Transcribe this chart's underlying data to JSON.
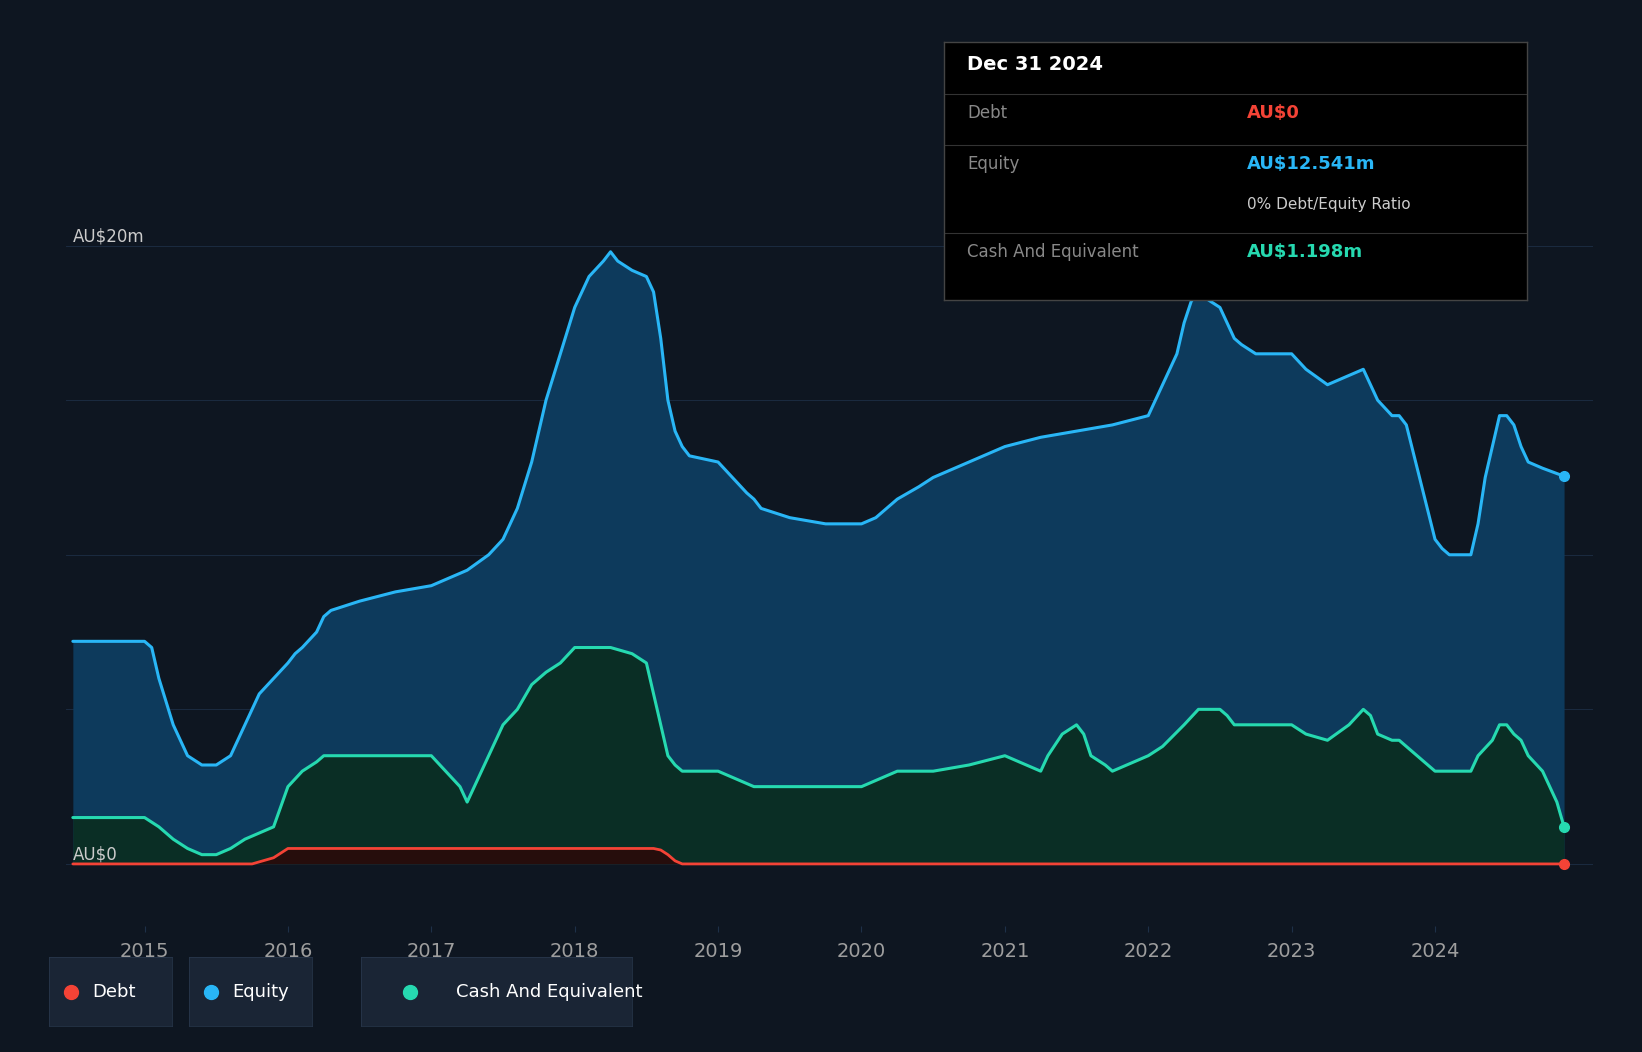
{
  "bg_color": "#0e1621",
  "chart_bg": "#0e1621",
  "plot_bg": "#111d2e",
  "ylabel_top": "AU$20m",
  "ylabel_bottom": "AU$0",
  "equity_color": "#29b6f6",
  "equity_fill": "#0d3a5c",
  "debt_color": "#f44336",
  "debt_fill": "#2a0a0a",
  "cash_color": "#26d9b0",
  "cash_fill": "#0a2e25",
  "grid_color": "#1e3048",
  "tick_color": "#9e9e9e",
  "tooltip_bg": "#000000",
  "tooltip_border": "#444444",
  "equity_data": [
    [
      2014.5,
      7.2
    ],
    [
      2014.8,
      7.2
    ],
    [
      2014.9,
      7.2
    ],
    [
      2015.0,
      7.2
    ],
    [
      2015.05,
      7.0
    ],
    [
      2015.1,
      6.0
    ],
    [
      2015.2,
      4.5
    ],
    [
      2015.3,
      3.5
    ],
    [
      2015.4,
      3.2
    ],
    [
      2015.5,
      3.2
    ],
    [
      2015.6,
      3.5
    ],
    [
      2015.7,
      4.5
    ],
    [
      2015.8,
      5.5
    ],
    [
      2015.9,
      6.0
    ],
    [
      2016.0,
      6.5
    ],
    [
      2016.05,
      6.8
    ],
    [
      2016.1,
      7.0
    ],
    [
      2016.2,
      7.5
    ],
    [
      2016.25,
      8.0
    ],
    [
      2016.3,
      8.2
    ],
    [
      2016.5,
      8.5
    ],
    [
      2016.75,
      8.8
    ],
    [
      2017.0,
      9.0
    ],
    [
      2017.25,
      9.5
    ],
    [
      2017.4,
      10.0
    ],
    [
      2017.5,
      10.5
    ],
    [
      2017.6,
      11.5
    ],
    [
      2017.7,
      13.0
    ],
    [
      2017.8,
      15.0
    ],
    [
      2017.9,
      16.5
    ],
    [
      2018.0,
      18.0
    ],
    [
      2018.1,
      19.0
    ],
    [
      2018.2,
      19.5
    ],
    [
      2018.25,
      19.8
    ],
    [
      2018.3,
      19.5
    ],
    [
      2018.4,
      19.2
    ],
    [
      2018.5,
      19.0
    ],
    [
      2018.55,
      18.5
    ],
    [
      2018.6,
      17.0
    ],
    [
      2018.65,
      15.0
    ],
    [
      2018.7,
      14.0
    ],
    [
      2018.75,
      13.5
    ],
    [
      2018.8,
      13.2
    ],
    [
      2019.0,
      13.0
    ],
    [
      2019.1,
      12.5
    ],
    [
      2019.2,
      12.0
    ],
    [
      2019.25,
      11.8
    ],
    [
      2019.3,
      11.5
    ],
    [
      2019.5,
      11.2
    ],
    [
      2019.75,
      11.0
    ],
    [
      2020.0,
      11.0
    ],
    [
      2020.1,
      11.2
    ],
    [
      2020.25,
      11.8
    ],
    [
      2020.4,
      12.2
    ],
    [
      2020.5,
      12.5
    ],
    [
      2020.75,
      13.0
    ],
    [
      2021.0,
      13.5
    ],
    [
      2021.25,
      13.8
    ],
    [
      2021.5,
      14.0
    ],
    [
      2021.75,
      14.2
    ],
    [
      2022.0,
      14.5
    ],
    [
      2022.1,
      15.5
    ],
    [
      2022.2,
      16.5
    ],
    [
      2022.25,
      17.5
    ],
    [
      2022.3,
      18.2
    ],
    [
      2022.35,
      18.5
    ],
    [
      2022.4,
      18.3
    ],
    [
      2022.5,
      18.0
    ],
    [
      2022.55,
      17.5
    ],
    [
      2022.6,
      17.0
    ],
    [
      2022.65,
      16.8
    ],
    [
      2022.75,
      16.5
    ],
    [
      2023.0,
      16.5
    ],
    [
      2023.1,
      16.0
    ],
    [
      2023.25,
      15.5
    ],
    [
      2023.4,
      15.8
    ],
    [
      2023.5,
      16.0
    ],
    [
      2023.55,
      15.5
    ],
    [
      2023.6,
      15.0
    ],
    [
      2023.7,
      14.5
    ],
    [
      2023.75,
      14.5
    ],
    [
      2023.8,
      14.2
    ],
    [
      2024.0,
      10.5
    ],
    [
      2024.05,
      10.2
    ],
    [
      2024.1,
      10.0
    ],
    [
      2024.25,
      10.0
    ],
    [
      2024.3,
      11.0
    ],
    [
      2024.35,
      12.5
    ],
    [
      2024.4,
      13.5
    ],
    [
      2024.45,
      14.5
    ],
    [
      2024.5,
      14.5
    ],
    [
      2024.55,
      14.2
    ],
    [
      2024.6,
      13.5
    ],
    [
      2024.65,
      13.0
    ],
    [
      2024.75,
      12.8
    ],
    [
      2024.9,
      12.541
    ]
  ],
  "debt_data": [
    [
      2014.5,
      0.0
    ],
    [
      2015.0,
      0.0
    ],
    [
      2015.1,
      0.0
    ],
    [
      2015.5,
      0.0
    ],
    [
      2015.75,
      0.0
    ],
    [
      2015.9,
      0.2
    ],
    [
      2016.0,
      0.5
    ],
    [
      2016.25,
      0.5
    ],
    [
      2016.5,
      0.5
    ],
    [
      2016.75,
      0.5
    ],
    [
      2017.0,
      0.5
    ],
    [
      2017.25,
      0.5
    ],
    [
      2017.5,
      0.5
    ],
    [
      2017.75,
      0.5
    ],
    [
      2018.0,
      0.5
    ],
    [
      2018.25,
      0.5
    ],
    [
      2018.5,
      0.5
    ],
    [
      2018.55,
      0.5
    ],
    [
      2018.6,
      0.45
    ],
    [
      2018.65,
      0.3
    ],
    [
      2018.7,
      0.1
    ],
    [
      2018.75,
      0.0
    ],
    [
      2024.9,
      0.0
    ]
  ],
  "cash_data": [
    [
      2014.5,
      1.5
    ],
    [
      2014.9,
      1.5
    ],
    [
      2015.0,
      1.5
    ],
    [
      2015.1,
      1.2
    ],
    [
      2015.2,
      0.8
    ],
    [
      2015.3,
      0.5
    ],
    [
      2015.4,
      0.3
    ],
    [
      2015.5,
      0.3
    ],
    [
      2015.6,
      0.5
    ],
    [
      2015.7,
      0.8
    ],
    [
      2015.8,
      1.0
    ],
    [
      2015.9,
      1.2
    ],
    [
      2016.0,
      2.5
    ],
    [
      2016.1,
      3.0
    ],
    [
      2016.2,
      3.3
    ],
    [
      2016.25,
      3.5
    ],
    [
      2016.3,
      3.5
    ],
    [
      2016.5,
      3.5
    ],
    [
      2016.75,
      3.5
    ],
    [
      2017.0,
      3.5
    ],
    [
      2017.1,
      3.0
    ],
    [
      2017.2,
      2.5
    ],
    [
      2017.25,
      2.0
    ],
    [
      2017.3,
      2.5
    ],
    [
      2017.4,
      3.5
    ],
    [
      2017.5,
      4.5
    ],
    [
      2017.6,
      5.0
    ],
    [
      2017.7,
      5.8
    ],
    [
      2017.8,
      6.2
    ],
    [
      2017.9,
      6.5
    ],
    [
      2018.0,
      7.0
    ],
    [
      2018.1,
      7.0
    ],
    [
      2018.25,
      7.0
    ],
    [
      2018.4,
      6.8
    ],
    [
      2018.5,
      6.5
    ],
    [
      2018.55,
      5.5
    ],
    [
      2018.6,
      4.5
    ],
    [
      2018.65,
      3.5
    ],
    [
      2018.7,
      3.2
    ],
    [
      2018.75,
      3.0
    ],
    [
      2019.0,
      3.0
    ],
    [
      2019.1,
      2.8
    ],
    [
      2019.25,
      2.5
    ],
    [
      2019.5,
      2.5
    ],
    [
      2019.75,
      2.5
    ],
    [
      2020.0,
      2.5
    ],
    [
      2020.1,
      2.7
    ],
    [
      2020.25,
      3.0
    ],
    [
      2020.5,
      3.0
    ],
    [
      2020.75,
      3.2
    ],
    [
      2021.0,
      3.5
    ],
    [
      2021.1,
      3.3
    ],
    [
      2021.25,
      3.0
    ],
    [
      2021.3,
      3.5
    ],
    [
      2021.4,
      4.2
    ],
    [
      2021.5,
      4.5
    ],
    [
      2021.55,
      4.2
    ],
    [
      2021.6,
      3.5
    ],
    [
      2021.7,
      3.2
    ],
    [
      2021.75,
      3.0
    ],
    [
      2022.0,
      3.5
    ],
    [
      2022.1,
      3.8
    ],
    [
      2022.25,
      4.5
    ],
    [
      2022.35,
      5.0
    ],
    [
      2022.5,
      5.0
    ],
    [
      2022.55,
      4.8
    ],
    [
      2022.6,
      4.5
    ],
    [
      2022.7,
      4.5
    ],
    [
      2022.75,
      4.5
    ],
    [
      2023.0,
      4.5
    ],
    [
      2023.1,
      4.2
    ],
    [
      2023.25,
      4.0
    ],
    [
      2023.4,
      4.5
    ],
    [
      2023.5,
      5.0
    ],
    [
      2023.55,
      4.8
    ],
    [
      2023.6,
      4.2
    ],
    [
      2023.7,
      4.0
    ],
    [
      2023.75,
      4.0
    ],
    [
      2023.8,
      3.8
    ],
    [
      2024.0,
      3.0
    ],
    [
      2024.1,
      3.0
    ],
    [
      2024.25,
      3.0
    ],
    [
      2024.3,
      3.5
    ],
    [
      2024.4,
      4.0
    ],
    [
      2024.45,
      4.5
    ],
    [
      2024.5,
      4.5
    ],
    [
      2024.55,
      4.2
    ],
    [
      2024.6,
      4.0
    ],
    [
      2024.65,
      3.5
    ],
    [
      2024.75,
      3.0
    ],
    [
      2024.85,
      2.0
    ],
    [
      2024.9,
      1.198
    ]
  ],
  "x_ticks": [
    2015,
    2016,
    2017,
    2018,
    2019,
    2020,
    2021,
    2022,
    2023,
    2024
  ],
  "x_min": 2014.45,
  "x_max": 2025.1,
  "y_min": -2.0,
  "y_max": 22.5,
  "y_gridlines": [
    0,
    5,
    10,
    15,
    20
  ],
  "y_label_20": 20,
  "y_label_0": 0,
  "tooltip": {
    "date": "Dec 31 2024",
    "debt_label": "Debt",
    "debt_value": "AU$0",
    "equity_label": "Equity",
    "equity_value": "AU$12.541m",
    "ratio_text": "0% Debt/Equity Ratio",
    "cash_label": "Cash And Equivalent",
    "cash_value": "AU$1.198m"
  },
  "legend": [
    {
      "label": "Debt",
      "color": "#f44336"
    },
    {
      "label": "Equity",
      "color": "#29b6f6"
    },
    {
      "label": "Cash And Equivalent",
      "color": "#26d9b0"
    }
  ],
  "legend_bg": "#1a2535"
}
